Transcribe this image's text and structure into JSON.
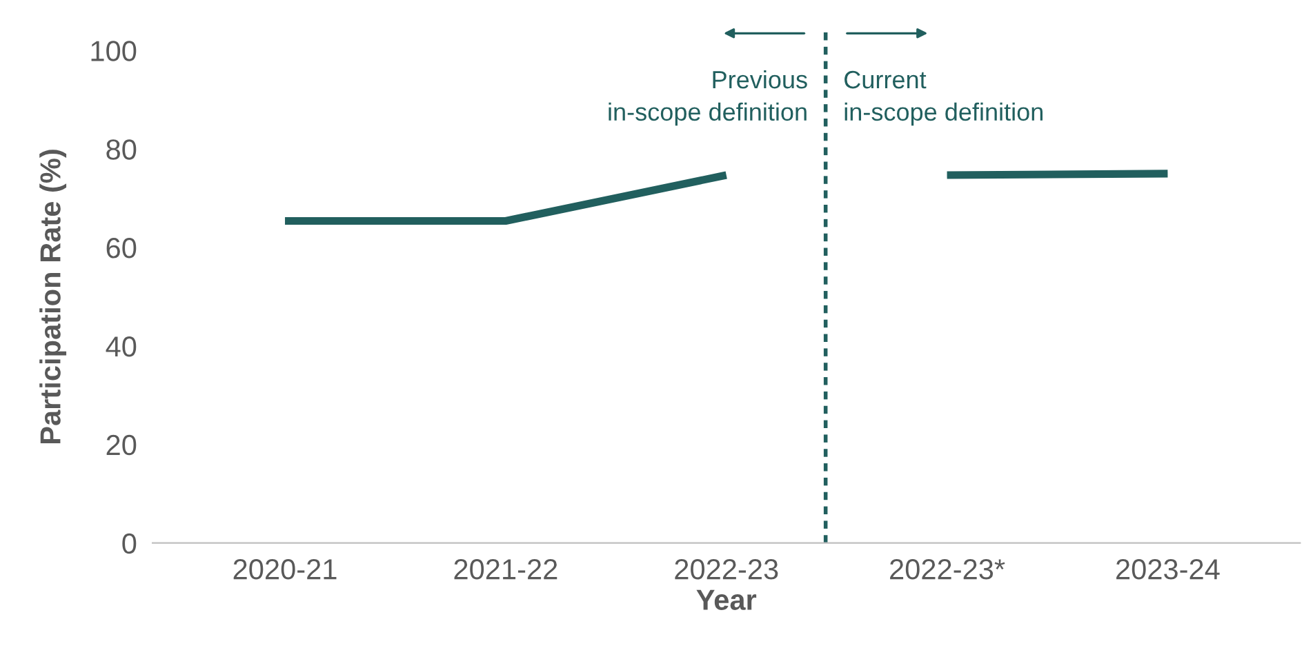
{
  "chart_data": {
    "type": "line",
    "xlabel": "Year",
    "ylabel": "Participation Rate (%)",
    "categories": [
      "2020-21",
      "2021-22",
      "2022-23",
      "2022-23*",
      "2023-24"
    ],
    "series": [
      {
        "color": "#215f5e",
        "values": [
          65.4,
          65.4,
          74.7,
          null,
          null
        ]
      },
      {
        "color": "#215f5e",
        "values": [
          null,
          null,
          null,
          74.7,
          75.0
        ]
      }
    ],
    "ylim": [
      0,
      100
    ],
    "yticks": [
      0,
      20,
      40,
      60,
      80,
      100
    ],
    "grid": false,
    "legend": false,
    "annotations": [
      "Previous\nin-scope definition",
      "Current\nin-scope definition"
    ]
  }
}
